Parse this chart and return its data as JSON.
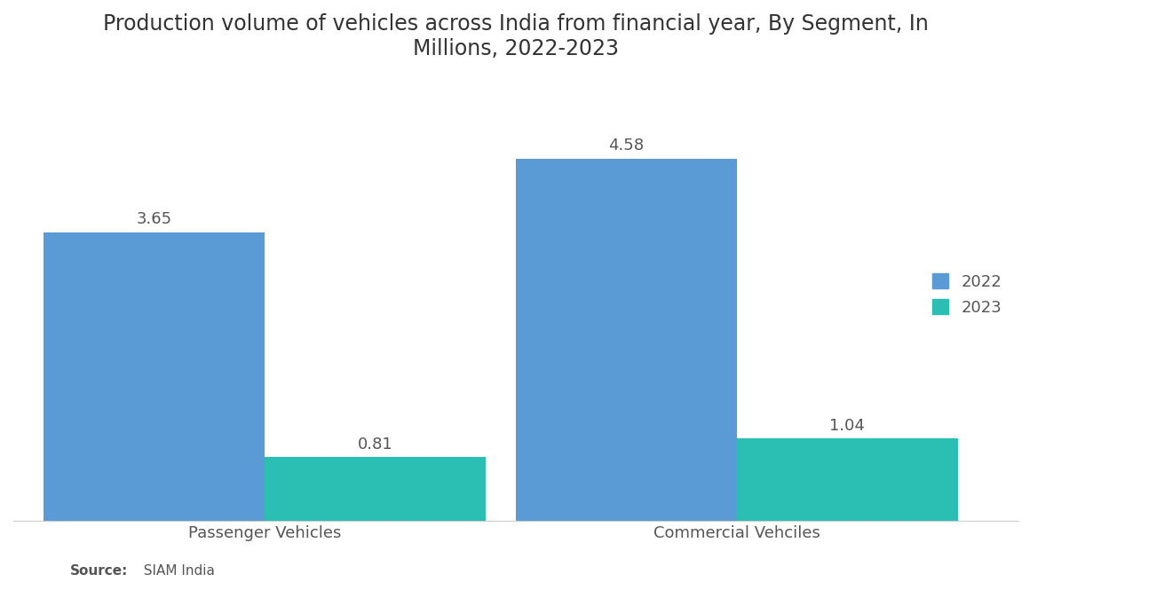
{
  "title": "Production volume of vehicles across India from financial year, By Segment, In\nMillions, 2022-2023",
  "categories": [
    "Passenger Vehicles",
    "Commercial Vehciles"
  ],
  "values_2022": [
    3.65,
    4.58
  ],
  "values_2023": [
    0.81,
    1.04
  ],
  "color_2022": "#5B9BD5",
  "color_2023": "#2BBFB3",
  "legend_labels": [
    "2022",
    "2023"
  ],
  "source_bold": "Source:",
  "source_normal": "  SIAM India",
  "ylim": [
    0,
    5.5
  ],
  "bar_width": 0.22,
  "title_fontsize": 17,
  "label_fontsize": 13,
  "tick_fontsize": 13,
  "annotation_fontsize": 13,
  "background_color": "#ffffff",
  "text_color": "#555555",
  "group_positions": [
    0.25,
    0.72
  ]
}
